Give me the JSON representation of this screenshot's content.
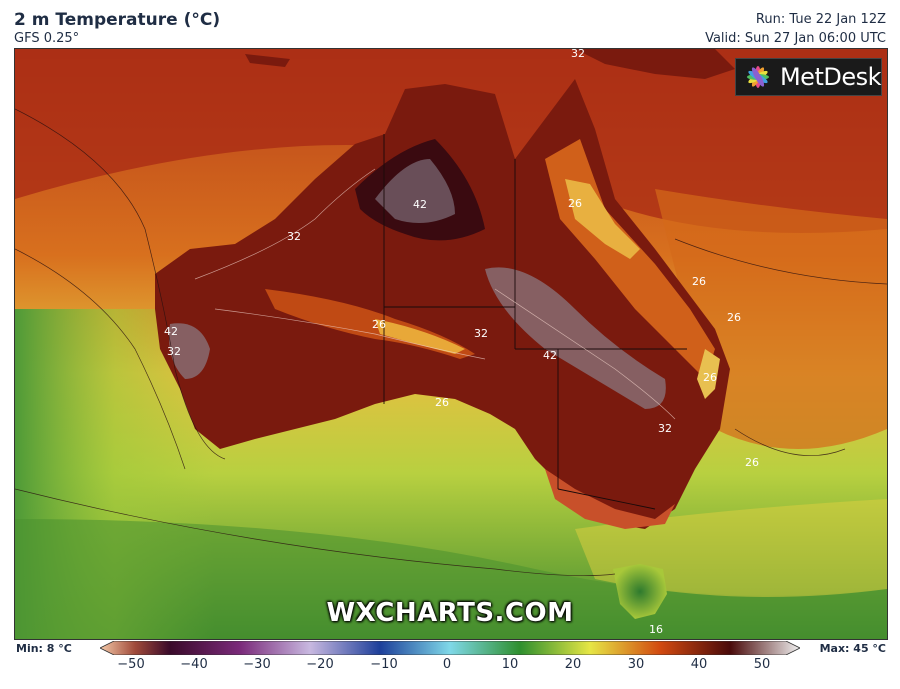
{
  "header": {
    "title": "2 m Temperature (°C)",
    "subtitle": "GFS 0.25°",
    "run": "Run: Tue 22 Jan 12Z",
    "valid": "Valid: Sun 27 Jan 06:00 UTC"
  },
  "logo": {
    "text": "MetDesk"
  },
  "watermark": "WXCHARTS.COM",
  "contour_labels": [
    "32",
    "42",
    "32",
    "42",
    "32",
    "26",
    "32",
    "42",
    "26",
    "26",
    "26",
    "26",
    "32",
    "26",
    "26",
    "16"
  ],
  "legend": {
    "min_label": "Min: 8 °C",
    "max_label": "Max: 45 °C",
    "ticks": [
      "−50",
      "−40",
      "−30",
      "−20",
      "−10",
      "0",
      "10",
      "20",
      "30",
      "40",
      "50"
    ],
    "colors": {
      "neg50": "#f4c9a8",
      "neg40": "#3a0a2a",
      "neg30": "#7a2a7a",
      "neg20": "#c8b8e0",
      "neg10": "#1d3f9a",
      "zero": "#7fd8e8",
      "pos10": "#2e8f2e",
      "pos20": "#e6e645",
      "pos30": "#d24a10",
      "pos40": "#4a0a0a",
      "pos50": "#f0f0f0"
    }
  }
}
